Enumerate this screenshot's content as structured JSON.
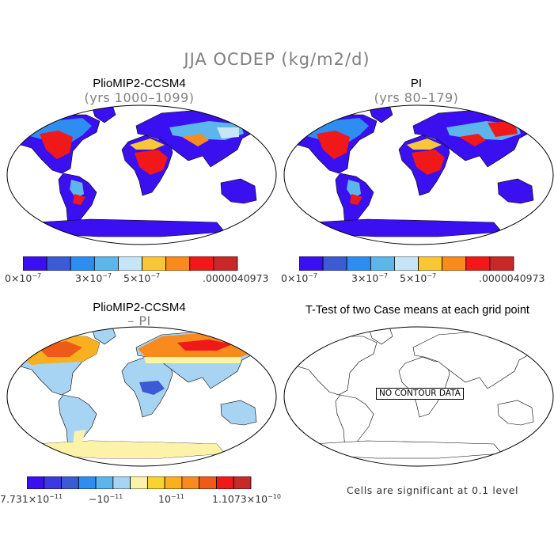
{
  "main_title": "JJA OCDEP (kg/m2/d)",
  "panels": {
    "top_left": {
      "title": "PlioMIP2-CCSM4",
      "subtitle": "(yrs 1000–1099)"
    },
    "top_right": {
      "title": "PI",
      "subtitle": "(yrs 80–179)"
    },
    "bottom_left": {
      "title": "PlioMIP2-CCSM4",
      "subtitle": "– PI"
    },
    "bottom_right": {
      "title": "T-Test of two Case means at each grid point",
      "no_data": "NO CONTOUR DATA",
      "note": "Cells are significant at 0.1 level"
    }
  },
  "colorbar_abs": {
    "colors": [
      "#3a10f0",
      "#3c5ad4",
      "#2e8df0",
      "#5cb6ec",
      "#c6e6f8",
      "#f8c636",
      "#f88a1e",
      "#f01818",
      "#c82828"
    ],
    "labels": {
      "l0_base": "0×10",
      "l0_exp": "−7",
      "l1_base": "3×10",
      "l1_exp": "−7",
      "l2_base": "5×10",
      "l2_exp": "−7",
      "l3": ".0000040973"
    }
  },
  "colorbar_diff": {
    "colors": [
      "#3a10f0",
      "#3a3ae0",
      "#3c5ad4",
      "#2e8df0",
      "#5cb6ec",
      "#a8d4f4",
      "#fdf3a8",
      "#f8d430",
      "#f8b020",
      "#f88a1e",
      "#f05a18",
      "#f01818",
      "#c82828"
    ],
    "labels": {
      "l0_base": "7.731×10",
      "l0_exp": "−11",
      "l1_base": "−10",
      "l1_exp": "−11",
      "l2_base": "10",
      "l2_exp": "−11",
      "l3_base": "1.1073×10",
      "l3_exp": "−10"
    }
  }
}
